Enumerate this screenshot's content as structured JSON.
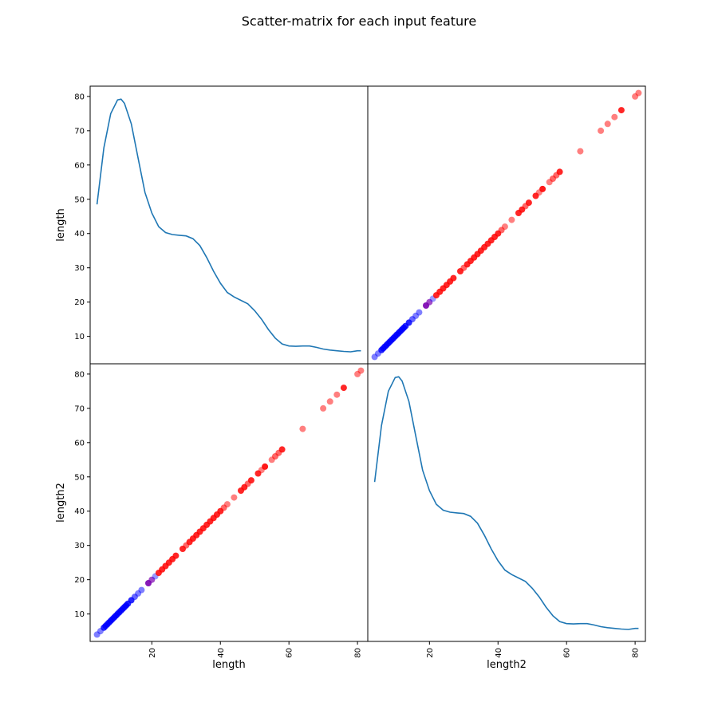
{
  "chart_data": {
    "type": "scatter",
    "title": "Scatter-matrix for each input feature",
    "variables": [
      "length",
      "length2"
    ],
    "axis_ticks": [
      10,
      20,
      30,
      40,
      50,
      60,
      70,
      80
    ],
    "x_tick_labels": [
      20,
      40,
      60,
      80
    ],
    "axis_range": [
      2,
      83
    ],
    "diagonal": {
      "type": "kde",
      "x": [
        4,
        6,
        8,
        10,
        11,
        12,
        14,
        16,
        18,
        20,
        22,
        24,
        26,
        28,
        30,
        32,
        34,
        36,
        38,
        40,
        42,
        44,
        46,
        48,
        50,
        52,
        54,
        56,
        58,
        60,
        62,
        64,
        66,
        68,
        70,
        72,
        74,
        76,
        78,
        80,
        81
      ],
      "y_display": [
        48.5,
        65,
        75,
        79,
        79.2,
        78,
        72,
        62,
        52,
        46,
        42,
        40.3,
        39.7,
        39.5,
        39.3,
        38.5,
        36.5,
        33,
        29,
        25.5,
        22.8,
        21.5,
        20.5,
        19.5,
        17.5,
        15,
        12,
        9.5,
        7.8,
        7.2,
        7.1,
        7.2,
        7.2,
        6.8,
        6.3,
        6,
        5.8,
        5.6,
        5.5,
        5.8,
        5.8
      ]
    },
    "points": [
      {
        "value": 4,
        "class": "blue",
        "alpha": 0.5
      },
      {
        "value": 5,
        "class": "blue",
        "alpha": 0.5
      },
      {
        "value": 6,
        "class": "blue",
        "alpha": 0.85
      },
      {
        "value": 6.5,
        "class": "blue",
        "alpha": 0.85
      },
      {
        "value": 7,
        "class": "blue",
        "alpha": 0.85
      },
      {
        "value": 7.5,
        "class": "blue",
        "alpha": 0.85
      },
      {
        "value": 8,
        "class": "blue",
        "alpha": 0.85
      },
      {
        "value": 8.5,
        "class": "blue",
        "alpha": 0.85
      },
      {
        "value": 9,
        "class": "blue",
        "alpha": 0.85
      },
      {
        "value": 9.5,
        "class": "blue",
        "alpha": 0.85
      },
      {
        "value": 10,
        "class": "blue",
        "alpha": 0.85
      },
      {
        "value": 10.5,
        "class": "blue",
        "alpha": 0.85
      },
      {
        "value": 11,
        "class": "blue",
        "alpha": 0.85
      },
      {
        "value": 11.5,
        "class": "blue",
        "alpha": 0.85
      },
      {
        "value": 12,
        "class": "blue",
        "alpha": 0.85
      },
      {
        "value": 12.5,
        "class": "blue",
        "alpha": 0.85
      },
      {
        "value": 13,
        "class": "blue",
        "alpha": 0.85
      },
      {
        "value": 14,
        "class": "blue",
        "alpha": 0.85
      },
      {
        "value": 15,
        "class": "blue",
        "alpha": 0.6
      },
      {
        "value": 16,
        "class": "blue",
        "alpha": 0.5
      },
      {
        "value": 17,
        "class": "blue",
        "alpha": 0.5
      },
      {
        "value": 19,
        "class": "purple",
        "alpha": 0.9
      },
      {
        "value": 20,
        "class": "purple",
        "alpha": 0.7
      },
      {
        "value": 21,
        "class": "blue",
        "alpha": 0.4
      },
      {
        "value": 22,
        "class": "red",
        "alpha": 0.85
      },
      {
        "value": 23,
        "class": "red",
        "alpha": 0.85
      },
      {
        "value": 24,
        "class": "red",
        "alpha": 0.85
      },
      {
        "value": 25,
        "class": "red",
        "alpha": 0.85
      },
      {
        "value": 26,
        "class": "red",
        "alpha": 0.85
      },
      {
        "value": 27,
        "class": "red",
        "alpha": 0.85
      },
      {
        "value": 29,
        "class": "red",
        "alpha": 0.85
      },
      {
        "value": 30,
        "class": "red",
        "alpha": 0.6
      },
      {
        "value": 31,
        "class": "red",
        "alpha": 0.85
      },
      {
        "value": 32,
        "class": "red",
        "alpha": 0.85
      },
      {
        "value": 33,
        "class": "red",
        "alpha": 0.85
      },
      {
        "value": 34,
        "class": "red",
        "alpha": 0.85
      },
      {
        "value": 35,
        "class": "red",
        "alpha": 0.85
      },
      {
        "value": 36,
        "class": "red",
        "alpha": 0.85
      },
      {
        "value": 37,
        "class": "red",
        "alpha": 0.85
      },
      {
        "value": 38,
        "class": "red",
        "alpha": 0.85
      },
      {
        "value": 39,
        "class": "red",
        "alpha": 0.85
      },
      {
        "value": 40,
        "class": "red",
        "alpha": 0.85
      },
      {
        "value": 41,
        "class": "red",
        "alpha": 0.6
      },
      {
        "value": 42,
        "class": "red",
        "alpha": 0.5
      },
      {
        "value": 44,
        "class": "red",
        "alpha": 0.5
      },
      {
        "value": 46,
        "class": "red",
        "alpha": 0.85
      },
      {
        "value": 47,
        "class": "red",
        "alpha": 0.85
      },
      {
        "value": 48,
        "class": "red",
        "alpha": 0.6
      },
      {
        "value": 49,
        "class": "red",
        "alpha": 0.85
      },
      {
        "value": 51,
        "class": "red",
        "alpha": 0.85
      },
      {
        "value": 52,
        "class": "red",
        "alpha": 0.5
      },
      {
        "value": 53,
        "class": "red",
        "alpha": 0.9
      },
      {
        "value": 55,
        "class": "red",
        "alpha": 0.5
      },
      {
        "value": 56,
        "class": "red",
        "alpha": 0.6
      },
      {
        "value": 57,
        "class": "red",
        "alpha": 0.6
      },
      {
        "value": 58,
        "class": "red",
        "alpha": 0.85
      },
      {
        "value": 64,
        "class": "red",
        "alpha": 0.5
      },
      {
        "value": 70,
        "class": "red",
        "alpha": 0.5
      },
      {
        "value": 72,
        "class": "red",
        "alpha": 0.5
      },
      {
        "value": 74,
        "class": "red",
        "alpha": 0.5
      },
      {
        "value": 76,
        "class": "red",
        "alpha": 0.85
      },
      {
        "value": 80,
        "class": "red",
        "alpha": 0.5
      },
      {
        "value": 81,
        "class": "red",
        "alpha": 0.5
      }
    ],
    "colors": {
      "blue": "#0000ff",
      "red": "#ff0000",
      "purple": "#7a00b0",
      "kde": "#1f77b4",
      "frame": "#000000"
    }
  }
}
